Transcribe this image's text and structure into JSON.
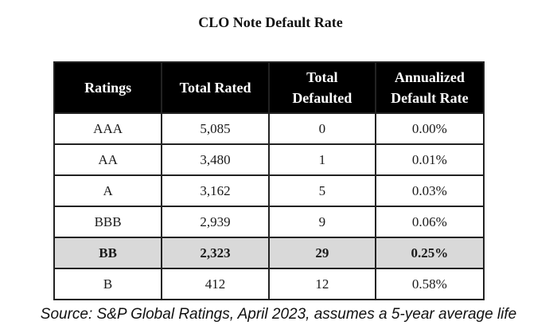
{
  "chart_data": {
    "type": "table",
    "title": "CLO Note Default Rate",
    "columns": [
      [
        "Ratings"
      ],
      [
        "Total Rated"
      ],
      [
        "Total",
        "Defaulted"
      ],
      [
        "Annualized",
        "Default Rate"
      ]
    ],
    "rows": [
      {
        "rating": "AAA",
        "total_rated": "5,085",
        "total_defaulted": "0",
        "default_rate": "0.00%",
        "highlight": false
      },
      {
        "rating": "AA",
        "total_rated": "3,480",
        "total_defaulted": "1",
        "default_rate": "0.01%",
        "highlight": false
      },
      {
        "rating": "A",
        "total_rated": "3,162",
        "total_defaulted": "5",
        "default_rate": "0.03%",
        "highlight": false
      },
      {
        "rating": "BBB",
        "total_rated": "2,939",
        "total_defaulted": "9",
        "default_rate": "0.06%",
        "highlight": false
      },
      {
        "rating": "BB",
        "total_rated": "2,323",
        "total_defaulted": "29",
        "default_rate": "0.25%",
        "highlight": true
      },
      {
        "rating": "B",
        "total_rated": "412",
        "total_defaulted": "12",
        "default_rate": "0.58%",
        "highlight": false
      }
    ],
    "source": "Source: S&P Global Ratings, April 2023, assumes a 5-year average life"
  },
  "colors": {
    "header_bg": "#000000",
    "header_text": "#ffffff",
    "highlight_row_bg": "#d9d9d9"
  }
}
